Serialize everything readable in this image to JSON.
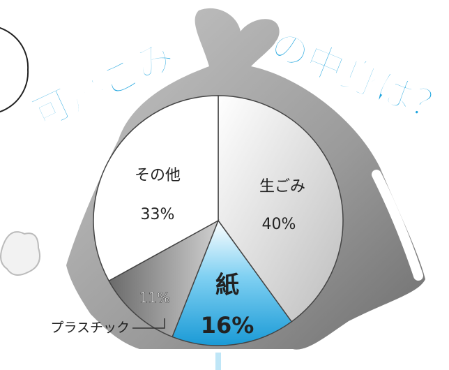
{
  "chart_data": {
    "type": "pie",
    "title_left": "可燃ごみ",
    "title_right": "の中身は？",
    "categories": [
      "生ごみ",
      "紙",
      "プラスチック",
      "その他"
    ],
    "values": [
      40,
      16,
      11,
      33
    ],
    "value_labels": [
      "40%",
      "16%",
      "11%",
      "33%"
    ],
    "colors": [
      "#e6e6e6",
      "#2aa8e0",
      "#8c8c8c",
      "#ffffff"
    ]
  }
}
